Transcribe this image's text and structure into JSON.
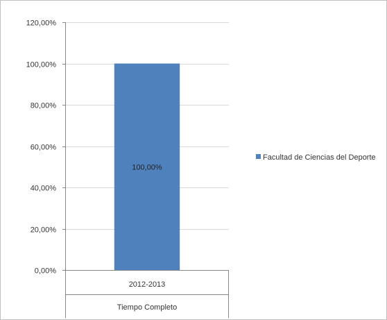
{
  "chart_data": {
    "type": "bar",
    "title": "",
    "xlabel": "",
    "ylabel": "",
    "ylim": [
      0,
      1.2
    ],
    "y_ticks": [
      "0,00%",
      "20,00%",
      "40,00%",
      "60,00%",
      "80,00%",
      "100,00%",
      "120,00%"
    ],
    "grid": true,
    "legend_position": "right",
    "categories": [
      {
        "level1": "2012-2013",
        "level2": "Tiempo Completo"
      }
    ],
    "series": [
      {
        "name": "Facultad de Ciencias del Deporte",
        "values": [
          1.0
        ],
        "labels": [
          "100,00%"
        ],
        "color": "#4f81bd"
      }
    ]
  }
}
